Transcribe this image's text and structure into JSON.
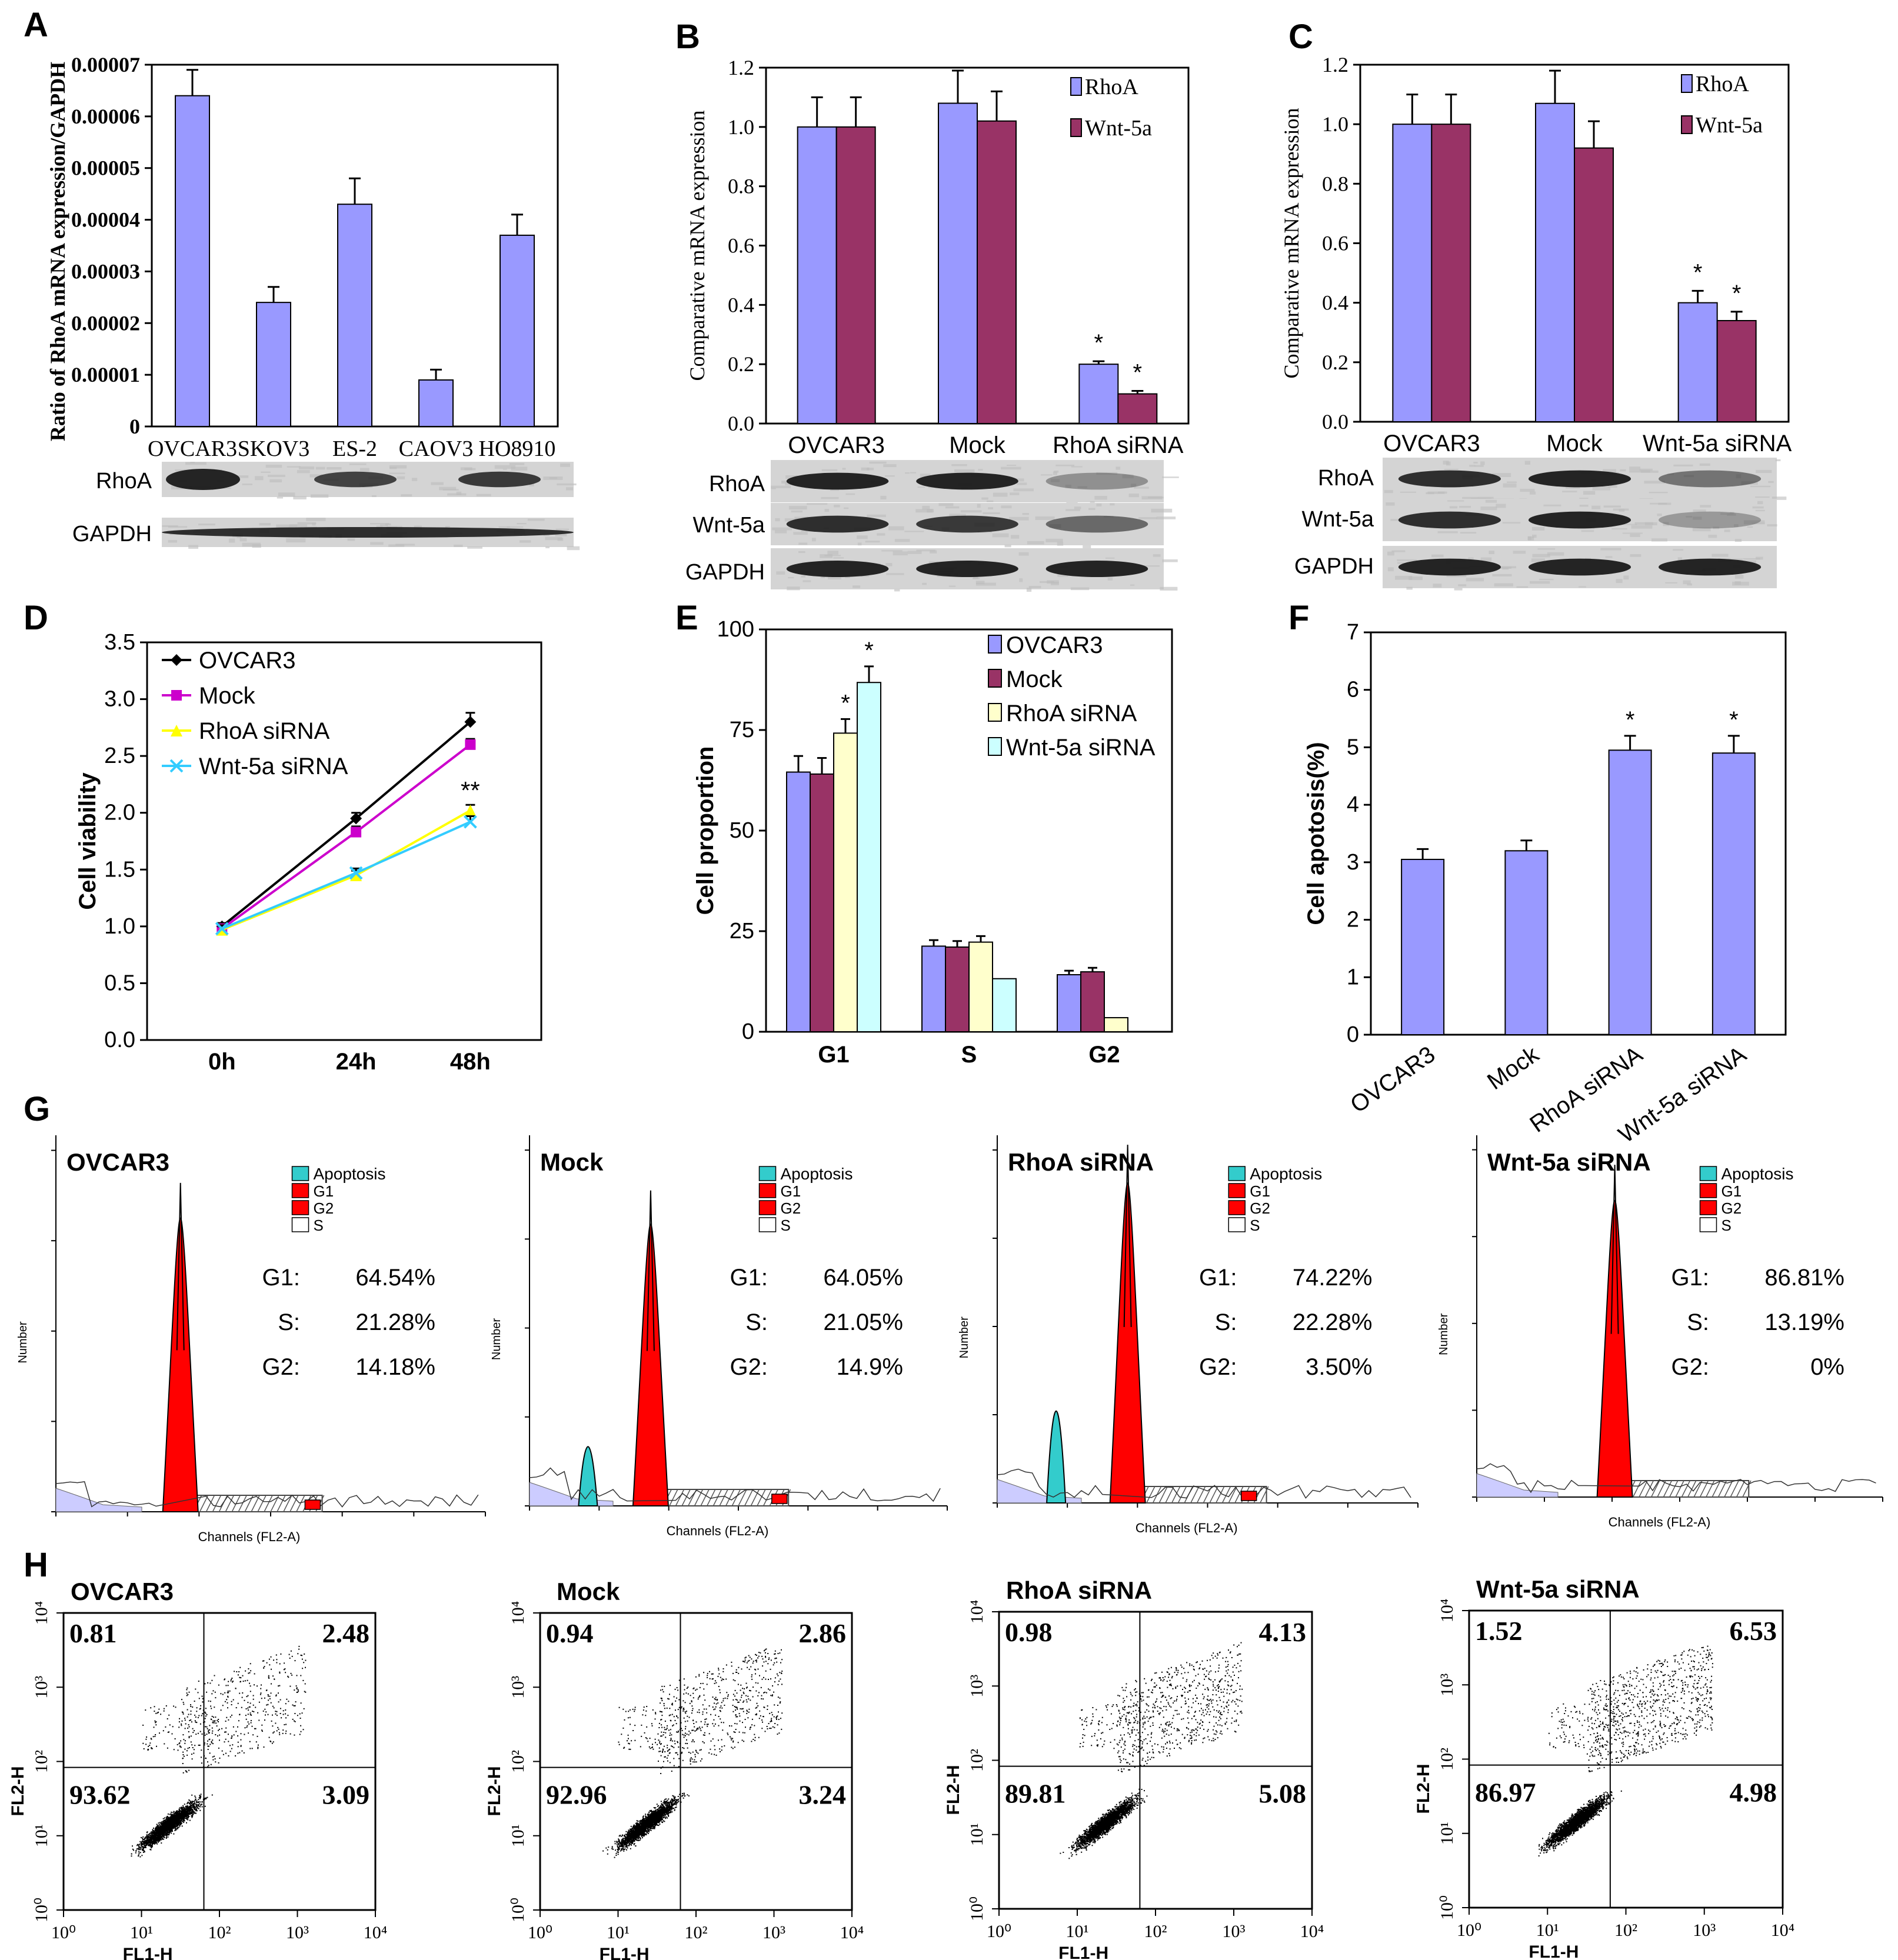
{
  "colors": {
    "rhoa": "#9999ff",
    "wnt5a": "#993366",
    "rhoa_sirna": "#ffffcc",
    "wnt5a_sirna": "#ccffff",
    "ovcar3_line": "#000000",
    "mock_line": "#cc00cc",
    "rhoa_sirna_line": "#ffff00",
    "wnt5a_sirna_line": "#33ccff",
    "hist_apoptosis": "#33cccc",
    "hist_g": "#ff0000",
    "hist_fill": "#ccccff"
  },
  "chart_data": [
    {
      "panel": "A",
      "type": "bar",
      "ylabel": "Ratio of RhoA mRNA expression/GAPDH",
      "yticks": [
        "0",
        "0.00001",
        "0.00002",
        "0.00003",
        "0.00004",
        "0.00005",
        "0.00006",
        "0.00007"
      ],
      "ylim": [
        0,
        7e-05
      ],
      "categories": [
        "OVCAR3",
        "SKOV3",
        "ES-2",
        "CAOV3",
        "HO8910"
      ],
      "values": [
        6.4e-05,
        2.4e-05,
        4.3e-05,
        9e-06,
        3.7e-05
      ],
      "errors": [
        5e-06,
        3e-06,
        5e-06,
        2e-06,
        4e-06
      ],
      "blot_labels": [
        "RhoA",
        "GAPDH"
      ]
    },
    {
      "panel": "B",
      "type": "bar",
      "ylabel": "Comparative mRNA expression",
      "yticks": [
        "0.0",
        "0.2",
        "0.4",
        "0.6",
        "0.8",
        "1.0",
        "1.2"
      ],
      "ylim": [
        0,
        1.2
      ],
      "categories": [
        "OVCAR3",
        "Mock",
        "RhoA siRNA"
      ],
      "series": [
        {
          "name": "RhoA",
          "values": [
            1.0,
            1.08,
            0.2
          ],
          "errors": [
            0.1,
            0.11,
            0.01
          ]
        },
        {
          "name": "Wnt-5a",
          "values": [
            1.0,
            1.02,
            0.1
          ],
          "errors": [
            0.1,
            0.1,
            0.01
          ]
        }
      ],
      "annotations": [
        "*",
        "*"
      ],
      "blot_labels": [
        "RhoA",
        "Wnt-5a",
        "GAPDH"
      ]
    },
    {
      "panel": "C",
      "type": "bar",
      "ylabel": "Comparative mRNA expression",
      "yticks": [
        "0.0",
        "0.2",
        "0.4",
        "0.6",
        "0.8",
        "1.0",
        "1.2"
      ],
      "ylim": [
        0,
        1.2
      ],
      "categories": [
        "OVCAR3",
        "Mock",
        "Wnt-5a siRNA"
      ],
      "series": [
        {
          "name": "RhoA",
          "values": [
            1.0,
            1.07,
            0.4
          ],
          "errors": [
            0.1,
            0.11,
            0.04
          ]
        },
        {
          "name": "Wnt-5a",
          "values": [
            1.0,
            0.92,
            0.34
          ],
          "errors": [
            0.1,
            0.09,
            0.03
          ]
        }
      ],
      "annotations": [
        "*",
        "*"
      ],
      "blot_labels": [
        "RhoA",
        "Wnt-5a",
        "GAPDH"
      ]
    },
    {
      "panel": "D",
      "type": "line",
      "ylabel": "Cell viability",
      "yticks": [
        "0.0",
        "0.5",
        "1.0",
        "1.5",
        "2.0",
        "2.5",
        "3.0",
        "3.5"
      ],
      "ylim": [
        0,
        3.5
      ],
      "x": [
        "0h",
        "24h",
        "48h"
      ],
      "series": [
        {
          "name": "OVCAR3",
          "values": [
            1.0,
            1.95,
            2.8
          ],
          "errors": [
            0.03,
            0.05,
            0.08
          ]
        },
        {
          "name": "Mock",
          "values": [
            0.98,
            1.83,
            2.6
          ],
          "errors": [
            0.03,
            0.05,
            0.05
          ]
        },
        {
          "name": "RhoA siRNA",
          "values": [
            0.97,
            1.45,
            2.02
          ],
          "errors": [
            0.03,
            0.04,
            0.05
          ]
        },
        {
          "name": "Wnt-5a siRNA",
          "values": [
            0.98,
            1.47,
            1.92
          ],
          "errors": [
            0.03,
            0.04,
            0.05
          ]
        }
      ],
      "annotations": [
        "**"
      ]
    },
    {
      "panel": "E",
      "type": "bar",
      "ylabel": "Cell proportion",
      "yticks": [
        "0",
        "25",
        "50",
        "75",
        "100"
      ],
      "ylim": [
        0,
        100
      ],
      "categories": [
        "G1",
        "S",
        "G2"
      ],
      "series": [
        {
          "name": "OVCAR3",
          "values": [
            64.54,
            21.28,
            14.18
          ],
          "errors": [
            4,
            1.5,
            1
          ]
        },
        {
          "name": "Mock",
          "values": [
            64.05,
            21.05,
            14.9
          ],
          "errors": [
            4,
            1.5,
            1
          ]
        },
        {
          "name": "RhoA siRNA",
          "values": [
            74.22,
            22.28,
            3.5
          ],
          "errors": [
            3.5,
            1.5,
            0
          ]
        },
        {
          "name": "Wnt-5a siRNA",
          "values": [
            86.81,
            13.19,
            0
          ],
          "errors": [
            4,
            0,
            0
          ]
        }
      ],
      "annotations": [
        "*",
        "*"
      ]
    },
    {
      "panel": "F",
      "type": "bar",
      "ylabel": "Cell apotosis(%)",
      "yticks": [
        "0",
        "1",
        "2",
        "3",
        "4",
        "5",
        "6",
        "7"
      ],
      "ylim": [
        0,
        7
      ],
      "categories": [
        "OVCAR3",
        "Mock",
        "RhoA siRNA",
        "Wnt-5a siRNA"
      ],
      "values": [
        3.05,
        3.2,
        4.95,
        4.9
      ],
      "errors": [
        0.18,
        0.18,
        0.25,
        0.3
      ],
      "annotations": [
        "*",
        "*"
      ]
    }
  ],
  "panel_g": {
    "ylabel": "Number",
    "xlabel": "Channels (FL2-A)",
    "legend": [
      "Apoptosis",
      "G1",
      "G2",
      "S"
    ],
    "plots": [
      {
        "title": "OVCAR3",
        "g1_label": "G1:",
        "g1": "64.54%",
        "s_label": "S:",
        "s": "21.28%",
        "g2_label": "G2:",
        "g2": "14.18%"
      },
      {
        "title": "Mock",
        "g1_label": "G1:",
        "g1": "64.05%",
        "s_label": "S:",
        "s": "21.05%",
        "g2_label": "G2:",
        "g2": "14.9%"
      },
      {
        "title": "RhoA siRNA",
        "g1_label": "G1:",
        "g1": "74.22%",
        "s_label": "S:",
        "s": "22.28%",
        "g2_label": "G2:",
        "g2": "3.50%"
      },
      {
        "title": "Wnt-5a siRNA",
        "g1_label": "G1:",
        "g1": "86.81%",
        "s_label": "S:",
        "s": "13.19%",
        "g2_label": "G2:",
        "g2": "0%"
      }
    ]
  },
  "panel_h": {
    "xlabel": "FL1-H",
    "ylabel": "FL2-H",
    "plots": [
      {
        "title": "OVCAR3",
        "ul": "0.81",
        "ur": "2.48",
        "ll": "93.62",
        "lr": "3.09"
      },
      {
        "title": "Mock",
        "ul": "0.94",
        "ur": "2.86",
        "ll": "92.96",
        "lr": "3.24"
      },
      {
        "title": "RhoA siRNA",
        "ul": "0.98",
        "ur": "4.13",
        "ll": "89.81",
        "lr": "5.08"
      },
      {
        "title": "Wnt-5a siRNA",
        "ul": "1.52",
        "ur": "6.53",
        "ll": "86.97",
        "lr": "4.98"
      }
    ]
  },
  "panel_labels": [
    "A",
    "B",
    "C",
    "D",
    "E",
    "F",
    "G",
    "H"
  ]
}
